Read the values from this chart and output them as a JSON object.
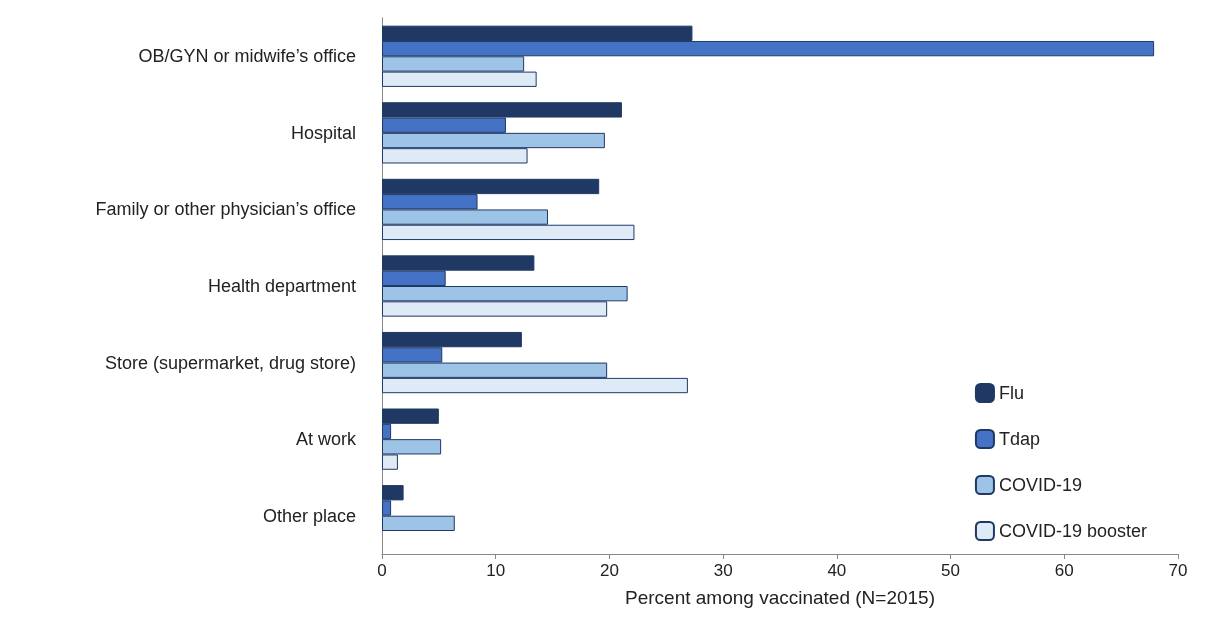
{
  "chart_data": {
    "type": "bar",
    "orientation": "horizontal",
    "xlabel": "Percent among vaccinated (N=2015)",
    "categories": [
      "OB/GYN or midwife’s office",
      "Hospital",
      "Family or other physician’s office",
      "Health department",
      "Store (supermarket, drug store)",
      "At work",
      "Other place"
    ],
    "series": [
      {
        "name": "Flu",
        "color": "#203864",
        "values": [
          27.3,
          21.1,
          19.1,
          13.4,
          12.3,
          5.0,
          1.9
        ]
      },
      {
        "name": "Tdap",
        "color": "#4472c4",
        "values": [
          67.9,
          10.9,
          8.4,
          5.6,
          5.3,
          0.8,
          0.8
        ]
      },
      {
        "name": "COVID-19",
        "color": "#9dc3e6",
        "values": [
          12.5,
          19.6,
          14.6,
          21.6,
          19.8,
          5.2,
          6.4
        ]
      },
      {
        "name": "COVID-19 booster",
        "color": "#deebf7",
        "values": [
          13.6,
          12.8,
          22.2,
          19.8,
          26.9,
          1.4,
          null
        ]
      }
    ],
    "xlim": [
      0,
      70
    ],
    "xticks": [
      0,
      10,
      20,
      30,
      40,
      50,
      60,
      70
    ],
    "grid": false,
    "legend": "bottom right"
  }
}
